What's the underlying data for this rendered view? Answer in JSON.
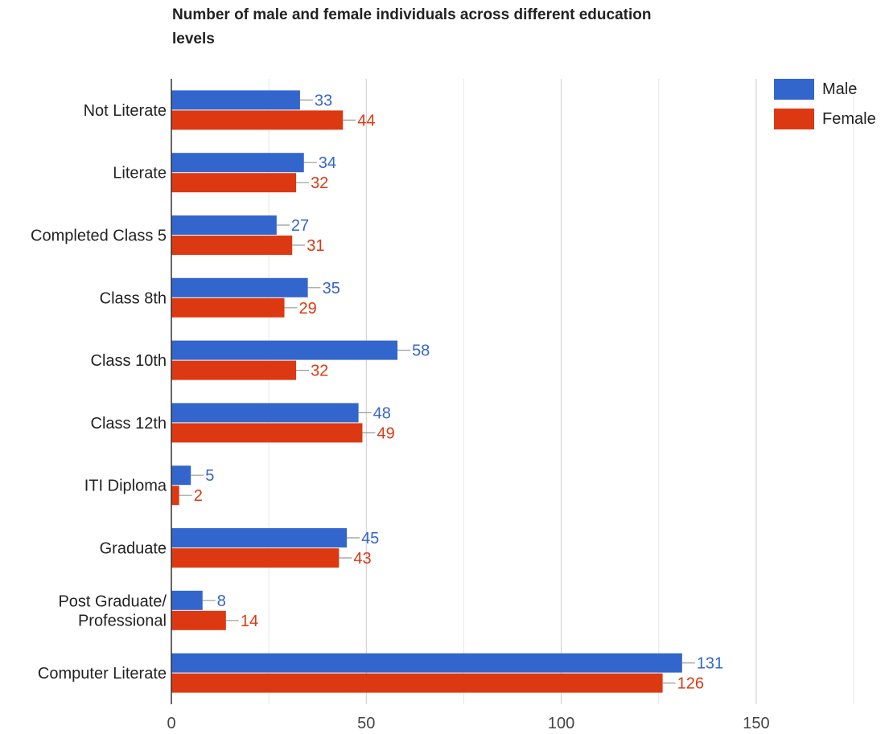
{
  "chart_data": {
    "type": "bar",
    "orientation": "horizontal",
    "title": "Number of male and female individuals across different education levels",
    "categories": [
      [
        "Not Literate"
      ],
      [
        "Literate"
      ],
      [
        "Completed Class 5"
      ],
      [
        "Class 8th"
      ],
      [
        "Class 10th"
      ],
      [
        "Class 12th"
      ],
      [
        "ITI Diploma"
      ],
      [
        "Graduate"
      ],
      [
        "Post Graduate/",
        "Professional"
      ],
      [
        "Computer Literate"
      ]
    ],
    "series": [
      {
        "name": "Male",
        "color": "#3366cc",
        "values": [
          33,
          34,
          27,
          35,
          58,
          48,
          5,
          45,
          8,
          131
        ]
      },
      {
        "name": "Female",
        "color": "#dc3912",
        "values": [
          44,
          32,
          31,
          29,
          32,
          49,
          2,
          43,
          14,
          126
        ]
      }
    ],
    "x_ticks": [
      0,
      50,
      100,
      150
    ],
    "xlim": [
      0,
      175
    ],
    "grid": true,
    "legend_position": "top-right",
    "data_labels": true
  }
}
